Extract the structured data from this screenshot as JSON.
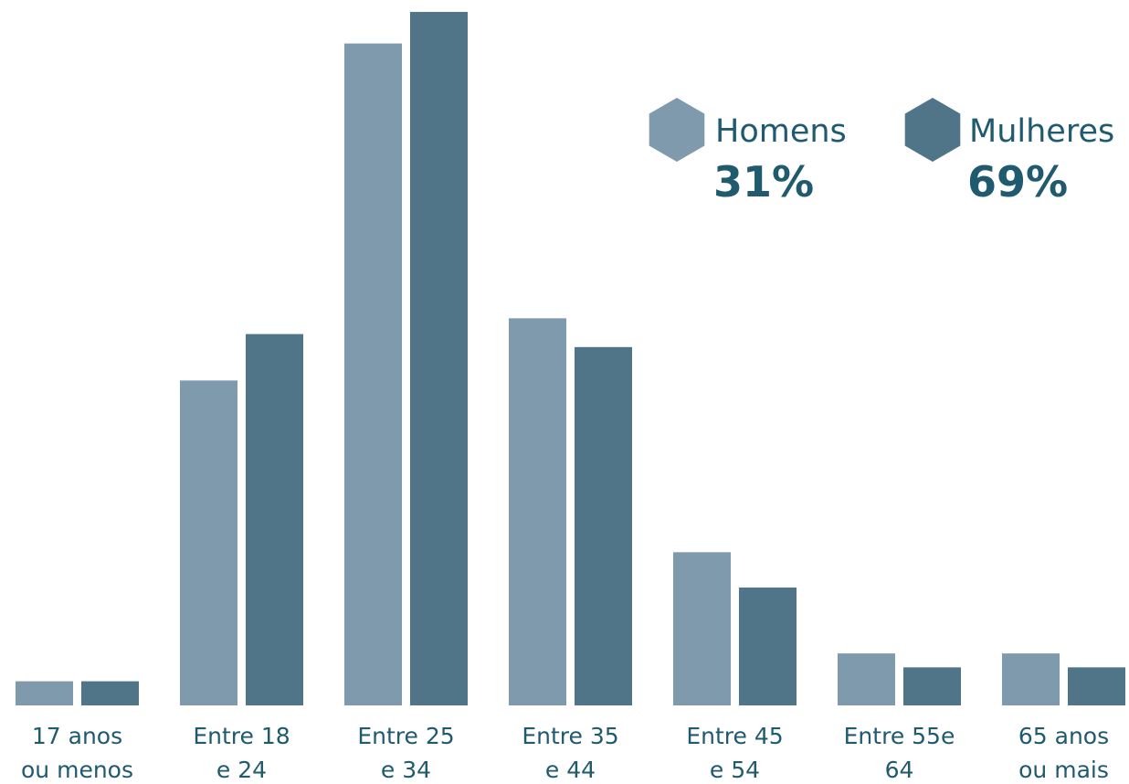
{
  "chart_data": {
    "type": "bar",
    "categories": [
      [
        "17 anos",
        "ou menos"
      ],
      [
        "Entre 18",
        "e 24"
      ],
      [
        "Entre 25",
        "e 34"
      ],
      [
        "Entre 35",
        "e 44"
      ],
      [
        "Entre 45",
        "e 54"
      ],
      [
        "Entre 55e",
        "64"
      ],
      [
        "65 anos",
        "ou mais"
      ]
    ],
    "series": [
      {
        "name": "Homens",
        "share": "31%",
        "color": "#7f9aad",
        "values": [
          2.6,
          35.0,
          71.3,
          41.7,
          16.5,
          5.6,
          5.6
        ]
      },
      {
        "name": "Mulheres",
        "share": "69%",
        "color": "#507589",
        "values": [
          2.6,
          40.0,
          74.7,
          38.6,
          12.7,
          4.1,
          4.1
        ]
      }
    ],
    "ylim": [
      0,
      75
    ],
    "grid": false,
    "legend_position": "top-right",
    "text_color": "#1f5a6e"
  }
}
